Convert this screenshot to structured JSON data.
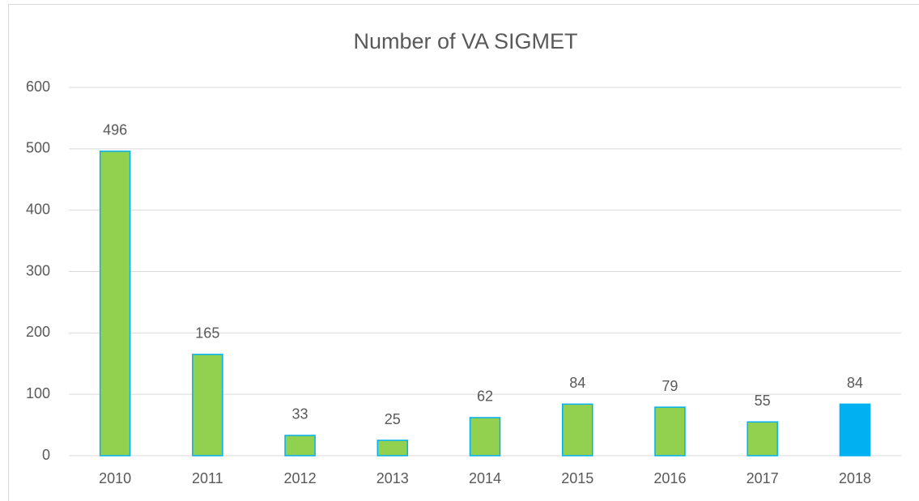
{
  "chart_data": {
    "type": "bar",
    "title": "Number of VA SIGMET",
    "categories": [
      "2010",
      "2011",
      "2012",
      "2013",
      "2014",
      "2015",
      "2016",
      "2017",
      "2018"
    ],
    "values": [
      496,
      165,
      33,
      25,
      62,
      84,
      79,
      55,
      84
    ],
    "colors": [
      "#92d050",
      "#92d050",
      "#92d050",
      "#92d050",
      "#92d050",
      "#92d050",
      "#92d050",
      "#92d050",
      "#00b0f0"
    ],
    "edge_color": "#00b0f0",
    "ylim": [
      0,
      600
    ],
    "yticks": [
      0,
      100,
      200,
      300,
      400,
      500,
      600
    ],
    "grid": true
  }
}
